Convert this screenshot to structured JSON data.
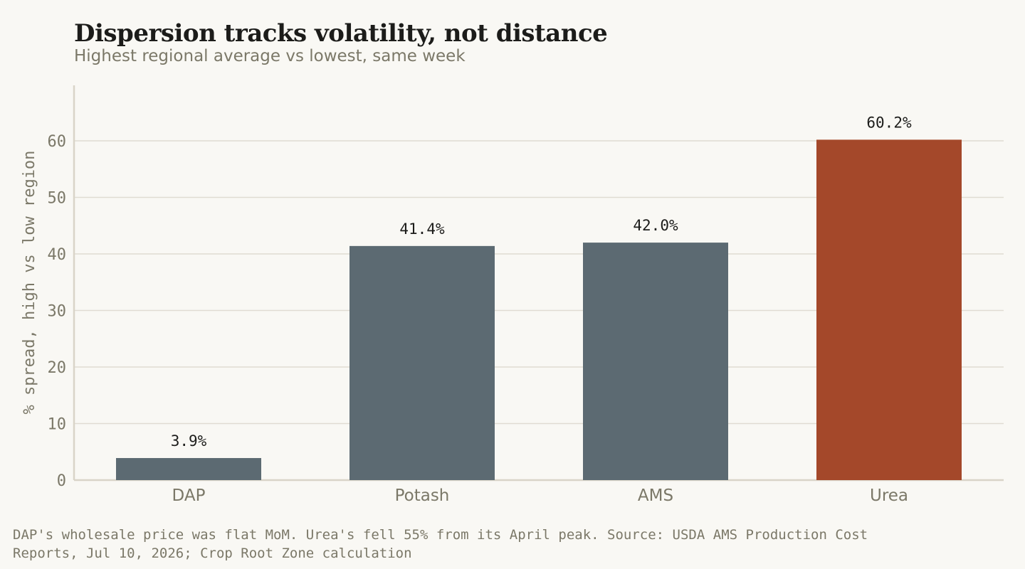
{
  "colors": {
    "background": "#f9f8f4",
    "bar_default": "#5c6a72",
    "bar_highlight": "#a4482a",
    "grid": "#e0dcd2",
    "axis": "#d9d4c8",
    "text_muted": "#7b7868",
    "text_dark": "#1c1c1a"
  },
  "chart_data": {
    "type": "bar",
    "title": "Dispersion tracks volatility, not distance",
    "subtitle": "Highest regional average vs lowest, same week",
    "xlabel": "",
    "ylabel": "% spread, high vs low region",
    "categories": [
      "DAP",
      "Potash",
      "AMS",
      "Urea"
    ],
    "values": [
      3.9,
      41.4,
      42.0,
      60.2
    ],
    "data_labels": [
      "3.9%",
      "41.4%",
      "42.0%",
      "60.2%"
    ],
    "highlight": [
      "Urea"
    ],
    "ylim": [
      0,
      70
    ],
    "yticks": [
      0,
      10,
      20,
      30,
      40,
      50,
      60
    ],
    "ytick_labels": [
      "0",
      "10",
      "20",
      "30",
      "40",
      "50",
      "60"
    ],
    "grid": "horizontal",
    "legend": "none"
  },
  "footnote": {
    "lines": [
      "DAP's wholesale price was flat MoM. Urea's fell 55% from its April peak.   Source: USDA AMS Production Cost",
      "Reports, Jul 10, 2026; Crop Root Zone calculation"
    ]
  }
}
